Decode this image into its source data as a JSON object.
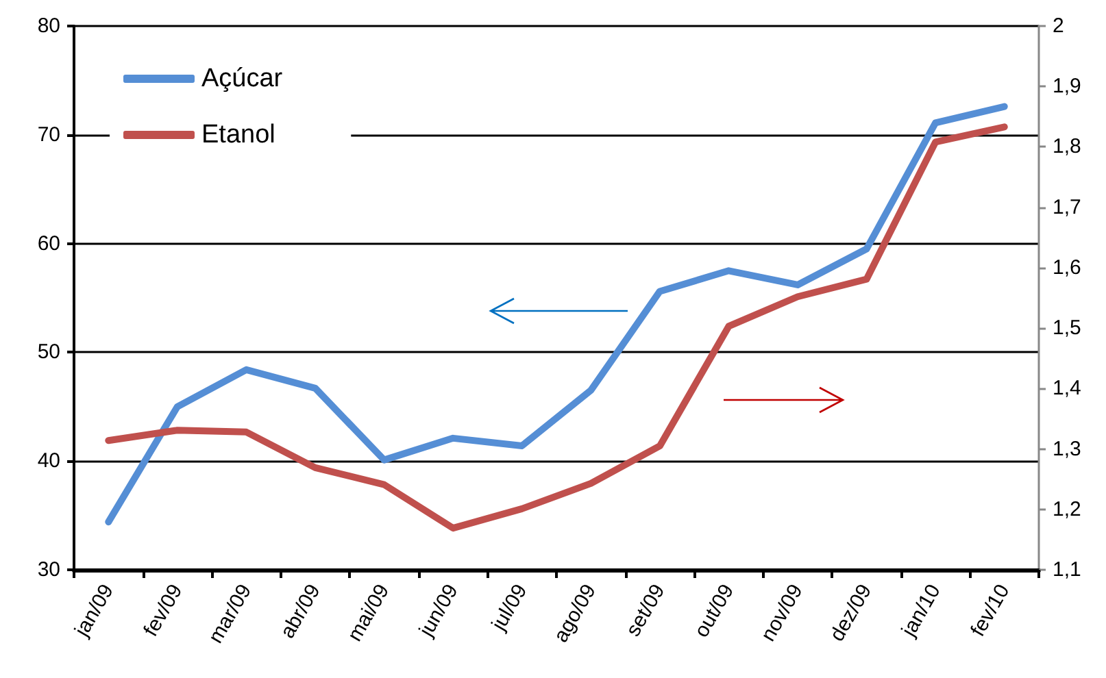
{
  "chart_data": {
    "type": "line",
    "categories": [
      "jan/09",
      "fev/09",
      "mar/09",
      "abr/09",
      "mai/09",
      "jun/09",
      "jul/09",
      "ago/09",
      "set/09",
      "out/09",
      "nov/09",
      "dez/09",
      "jan/10",
      "fev/10"
    ],
    "series": [
      {
        "name": "Açúcar",
        "color": "#558ed5",
        "values": [
          34.4,
          45.0,
          48.4,
          46.7,
          40.1,
          42.1,
          41.4,
          46.5,
          55.6,
          57.5,
          56.2,
          59.5,
          71.1,
          72.6
        ]
      },
      {
        "name": "Etanol",
        "color": "#c0504d",
        "axis": "y2",
        "values": [
          1.314,
          1.331,
          1.328,
          1.269,
          1.241,
          1.169,
          1.201,
          1.243,
          1.305,
          1.503,
          1.552,
          1.581,
          1.808,
          1.833
        ]
      }
    ],
    "ylim": [
      30,
      80
    ],
    "yticks": [
      30,
      40,
      50,
      60,
      70,
      80
    ],
    "y2lim": [
      1.1,
      2
    ],
    "y2ticks": [
      {
        "value": 1.1,
        "label": "1,1"
      },
      {
        "value": 1.2,
        "label": "1,2"
      },
      {
        "value": 1.3,
        "label": "1,3"
      },
      {
        "value": 1.4,
        "label": "1,4"
      },
      {
        "value": 1.5,
        "label": "1,5"
      },
      {
        "value": 1.6,
        "label": "1,6"
      },
      {
        "value": 1.7,
        "label": "1,7"
      },
      {
        "value": 1.8,
        "label": "1,8"
      },
      {
        "value": 1.9,
        "label": "1,9"
      },
      {
        "value": 2,
        "label": "2"
      }
    ],
    "grid": "y",
    "legend": "top left",
    "marker": "none",
    "line_style": "solid"
  }
}
